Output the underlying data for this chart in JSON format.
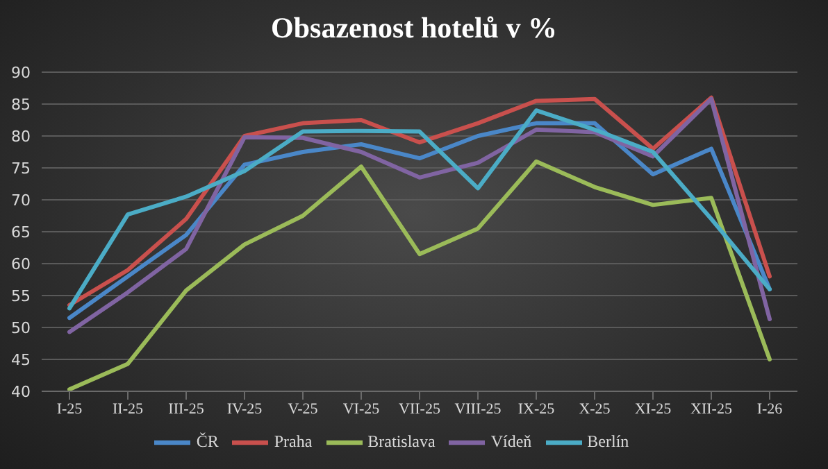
{
  "chart_data": {
    "type": "line",
    "title": "Obsazenost hotelů v %",
    "categories": [
      "I-25",
      "II-25",
      "III-25",
      "IV-25",
      "V-25",
      "VI-25",
      "VII-25",
      "VIII-25",
      "IX-25",
      "X-25",
      "XI-25",
      "XII-25",
      "I-26"
    ],
    "series": [
      {
        "name": "ČR",
        "color": "#4a87c8",
        "values": [
          51.5,
          58,
          64.5,
          75.5,
          77.5,
          78.7,
          76.5,
          80,
          82,
          82,
          74,
          78,
          56
        ]
      },
      {
        "name": "Praha",
        "color": "#c9504d",
        "values": [
          53.5,
          59,
          67,
          80,
          82,
          82.5,
          79,
          82,
          85.5,
          85.8,
          78,
          86,
          58
        ]
      },
      {
        "name": "Bratislava",
        "color": "#9bbb59",
        "values": [
          40.3,
          44.3,
          55.8,
          63,
          67.5,
          75.2,
          61.5,
          65.5,
          76,
          72,
          69.2,
          70.3,
          45
        ]
      },
      {
        "name": "Vídeň",
        "color": "#8064a2",
        "values": [
          49.3,
          55.5,
          62.3,
          79.8,
          79.7,
          77.5,
          73.5,
          75.8,
          81,
          80.6,
          76.8,
          85.8,
          51.3
        ]
      },
      {
        "name": "Berlín",
        "color": "#4bacc6",
        "values": [
          53,
          67.7,
          70.5,
          74.5,
          80.7,
          80.8,
          80.7,
          71.8,
          84,
          81,
          77.5,
          67,
          56
        ]
      }
    ],
    "ylim": [
      40,
      90
    ],
    "yticks": [
      40,
      45,
      50,
      55,
      60,
      65,
      70,
      75,
      80,
      85,
      90
    ],
    "grid": "y",
    "legend": "bottom",
    "marker": "none",
    "line_style": "solid"
  }
}
